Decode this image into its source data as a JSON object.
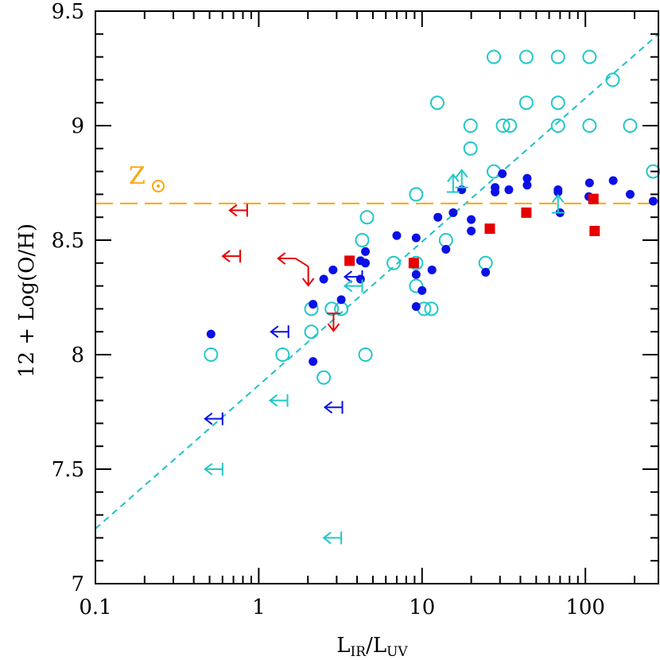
{
  "chart_data": {
    "type": "scatter",
    "title": "",
    "xlabel": {
      "main": "L",
      "sub1": "IR",
      "sep": "/L",
      "sub2": "UV"
    },
    "ylabel": "12 + Log(O/H)",
    "x_scale": "log",
    "xlim": [
      0.1,
      280
    ],
    "ylim": [
      7,
      9.5
    ],
    "x_ticks": [
      {
        "value": 0.1,
        "label": "0.1"
      },
      {
        "value": 1,
        "label": "1"
      },
      {
        "value": 10,
        "label": "10"
      },
      {
        "value": 100,
        "label": "100"
      }
    ],
    "y_ticks": [
      {
        "value": 7,
        "label": "7"
      },
      {
        "value": 7.5,
        "label": "7.5"
      },
      {
        "value": 8,
        "label": "8"
      },
      {
        "value": 8.5,
        "label": "8.5"
      },
      {
        "value": 9,
        "label": "9"
      },
      {
        "value": 9.5,
        "label": "9.5"
      }
    ],
    "grid": false,
    "solar_line": {
      "y": 8.66,
      "label": "Z",
      "color": "#FFA500"
    },
    "fit_line": {
      "x": [
        0.1,
        280
      ],
      "y": [
        7.24,
        9.4
      ],
      "color": "#20C0C8"
    },
    "series": [
      {
        "marker": "open-circle",
        "color": "#20C8C8",
        "points": [
          [
            0.51,
            8.0
          ],
          [
            1.4,
            8.0
          ],
          [
            2.1,
            8.1
          ],
          [
            2.1,
            8.2
          ],
          [
            2.5,
            7.9
          ],
          [
            2.8,
            8.2
          ],
          [
            3.2,
            8.2
          ],
          [
            4.3,
            8.5
          ],
          [
            4.6,
            8.6
          ],
          [
            4.5,
            8.0
          ],
          [
            6.7,
            8.4
          ],
          [
            9.2,
            8.7
          ],
          [
            9.2,
            8.4
          ],
          [
            9.2,
            8.3
          ],
          [
            10.3,
            8.2
          ],
          [
            11.4,
            8.2
          ],
          [
            12.4,
            9.1
          ],
          [
            14.0,
            8.5
          ],
          [
            19.8,
            8.9
          ],
          [
            19.8,
            9.0
          ],
          [
            24.5,
            8.4
          ],
          [
            27.5,
            9.3
          ],
          [
            27.5,
            8.8
          ],
          [
            31.3,
            9.0
          ],
          [
            34.5,
            9.0
          ],
          [
            43.5,
            9.3
          ],
          [
            43.5,
            9.1
          ],
          [
            68.0,
            9.3
          ],
          [
            68.0,
            9.1
          ],
          [
            68.0,
            9.0
          ],
          [
            106.0,
            9.3
          ],
          [
            106.0,
            9.0
          ],
          [
            147.0,
            9.2
          ],
          [
            188.0,
            9.0
          ],
          [
            260.0,
            8.8
          ]
        ]
      },
      {
        "marker": "filled-circle",
        "color": "#0A10E6",
        "points": [
          [
            0.51,
            8.09
          ],
          [
            2.15,
            7.97
          ],
          [
            2.15,
            8.22
          ],
          [
            2.5,
            8.33
          ],
          [
            2.85,
            8.37
          ],
          [
            3.2,
            8.24
          ],
          [
            4.2,
            8.33
          ],
          [
            4.2,
            8.41
          ],
          [
            4.5,
            8.45
          ],
          [
            4.5,
            8.4
          ],
          [
            7.0,
            8.52
          ],
          [
            9.2,
            8.51
          ],
          [
            9.2,
            8.35
          ],
          [
            9.2,
            8.21
          ],
          [
            10.0,
            8.28
          ],
          [
            11.5,
            8.37
          ],
          [
            12.5,
            8.6
          ],
          [
            14.0,
            8.46
          ],
          [
            15.5,
            8.62
          ],
          [
            17.5,
            8.72
          ],
          [
            20.0,
            8.59
          ],
          [
            20.0,
            8.54
          ],
          [
            24.5,
            8.36
          ],
          [
            28.0,
            8.71
          ],
          [
            28.0,
            8.73
          ],
          [
            31.0,
            8.79
          ],
          [
            34.0,
            8.72
          ],
          [
            44.0,
            8.74
          ],
          [
            44.0,
            8.77
          ],
          [
            68.0,
            8.72
          ],
          [
            68.0,
            8.71
          ],
          [
            70.0,
            8.62
          ],
          [
            105.0,
            8.69
          ],
          [
            106.0,
            8.75
          ],
          [
            148.0,
            8.76
          ],
          [
            188.0,
            8.7
          ],
          [
            260.0,
            8.67
          ]
        ]
      },
      {
        "marker": "filled-square",
        "color": "#E60000",
        "points": [
          [
            3.6,
            8.41
          ],
          [
            8.9,
            8.4
          ],
          [
            26.0,
            8.55
          ],
          [
            43.5,
            8.62
          ],
          [
            112.0,
            8.68
          ],
          [
            114.0,
            8.54
          ]
        ]
      }
    ],
    "limits": [
      {
        "type": "left",
        "color": "#E60000",
        "x": 0.85,
        "y": 8.63
      },
      {
        "type": "left",
        "color": "#E60000",
        "x": 0.77,
        "y": 8.43
      },
      {
        "type": "left-down",
        "color": "#E60000",
        "x": 1.68,
        "y": 8.42
      },
      {
        "type": "down",
        "color": "#E60000",
        "x": 2.87,
        "y": 8.18
      },
      {
        "type": "left",
        "color": "#0A10E6",
        "x": 4.3,
        "y": 8.34
      },
      {
        "type": "left",
        "color": "#0A10E6",
        "x": 1.52,
        "y": 8.1
      },
      {
        "type": "left",
        "color": "#0A10E6",
        "x": 0.6,
        "y": 7.72
      },
      {
        "type": "left",
        "color": "#0A10E6",
        "x": 3.25,
        "y": 7.77
      },
      {
        "type": "left",
        "color": "#20C8C8",
        "x": 4.3,
        "y": 8.3
      },
      {
        "type": "left",
        "color": "#20C8C8",
        "x": 1.5,
        "y": 7.8
      },
      {
        "type": "left",
        "color": "#20C8C8",
        "x": 0.6,
        "y": 7.5
      },
      {
        "type": "left",
        "color": "#20C8C8",
        "x": 3.2,
        "y": 7.2
      },
      {
        "type": "up",
        "color": "#20C8C8",
        "x": 15.5,
        "y": 8.71
      },
      {
        "type": "up",
        "color": "#20C8C8",
        "x": 17.5,
        "y": 8.73
      },
      {
        "type": "up",
        "color": "#20C8C8",
        "x": 68.0,
        "y": 8.62
      }
    ]
  }
}
